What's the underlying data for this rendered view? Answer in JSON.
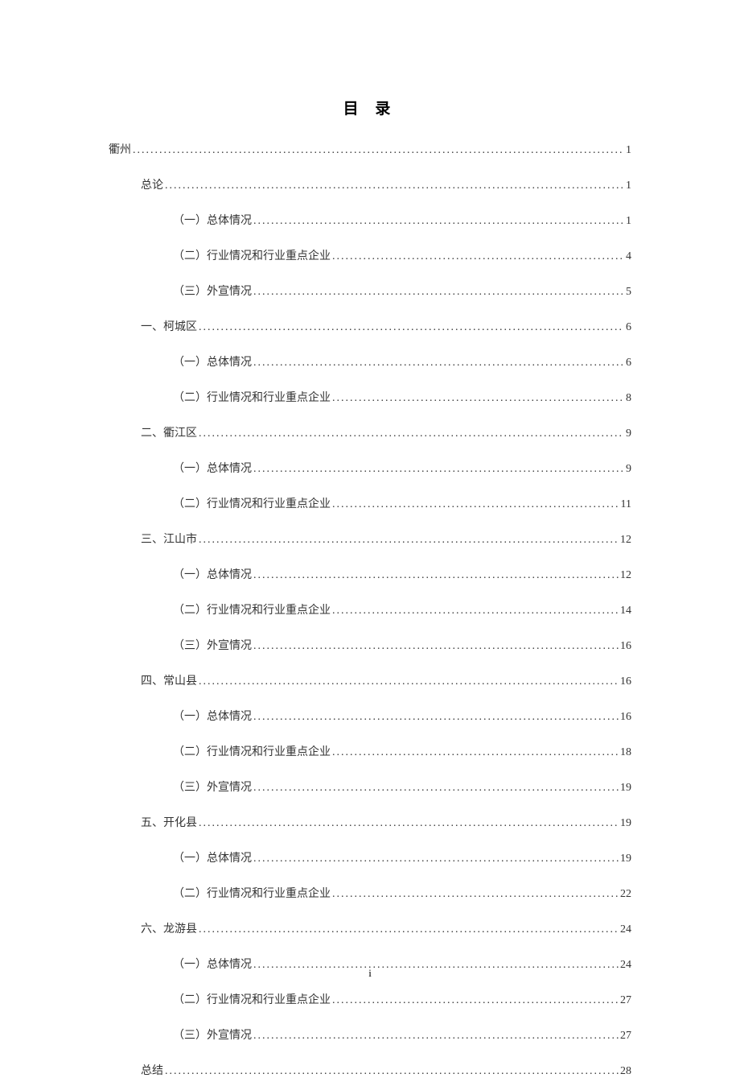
{
  "title": "目 录",
  "page_number": "i",
  "text_color": "#333333",
  "background_color": "#ffffff",
  "font_family": "SimSun",
  "title_fontsize": 19,
  "entry_fontsize": 14,
  "entries": [
    {
      "level": 0,
      "label": "衢州",
      "page": "1"
    },
    {
      "level": 1,
      "label": "总论",
      "page": "1"
    },
    {
      "level": 2,
      "label": "（一）总体情况",
      "page": "1"
    },
    {
      "level": 2,
      "label": "（二）行业情况和行业重点企业",
      "page": "4"
    },
    {
      "level": 2,
      "label": "（三）外宣情况",
      "page": "5"
    },
    {
      "level": 1,
      "label": "一、柯城区",
      "page": "6"
    },
    {
      "level": 2,
      "label": "（一）总体情况",
      "page": "6"
    },
    {
      "level": 2,
      "label": "（二）行业情况和行业重点企业",
      "page": "8"
    },
    {
      "level": 1,
      "label": "二、衢江区",
      "page": "9"
    },
    {
      "level": 2,
      "label": "（一）总体情况",
      "page": "9"
    },
    {
      "level": 2,
      "label": "（二）行业情况和行业重点企业",
      "page": "11"
    },
    {
      "level": 1,
      "label": "三、江山市",
      "page": "12"
    },
    {
      "level": 2,
      "label": "（一）总体情况",
      "page": "12"
    },
    {
      "level": 2,
      "label": "（二）行业情况和行业重点企业",
      "page": "14"
    },
    {
      "level": 2,
      "label": "（三）外宣情况",
      "page": "16"
    },
    {
      "level": 1,
      "label": "四、常山县",
      "page": "16"
    },
    {
      "level": 2,
      "label": "（一）总体情况",
      "page": "16"
    },
    {
      "level": 2,
      "label": "（二）行业情况和行业重点企业",
      "page": "18"
    },
    {
      "level": 2,
      "label": "（三）外宣情况",
      "page": "19"
    },
    {
      "level": 1,
      "label": "五、开化县",
      "page": "19"
    },
    {
      "level": 2,
      "label": "（一）总体情况",
      "page": "19"
    },
    {
      "level": 2,
      "label": "（二）行业情况和行业重点企业",
      "page": "22"
    },
    {
      "level": 1,
      "label": "六、龙游县",
      "page": "24"
    },
    {
      "level": 2,
      "label": "（一）总体情况",
      "page": "24"
    },
    {
      "level": 2,
      "label": "（二）行业情况和行业重点企业",
      "page": "27"
    },
    {
      "level": 2,
      "label": "（三）外宣情况",
      "page": "27"
    },
    {
      "level": 1,
      "label": "总结",
      "page": "28"
    }
  ]
}
